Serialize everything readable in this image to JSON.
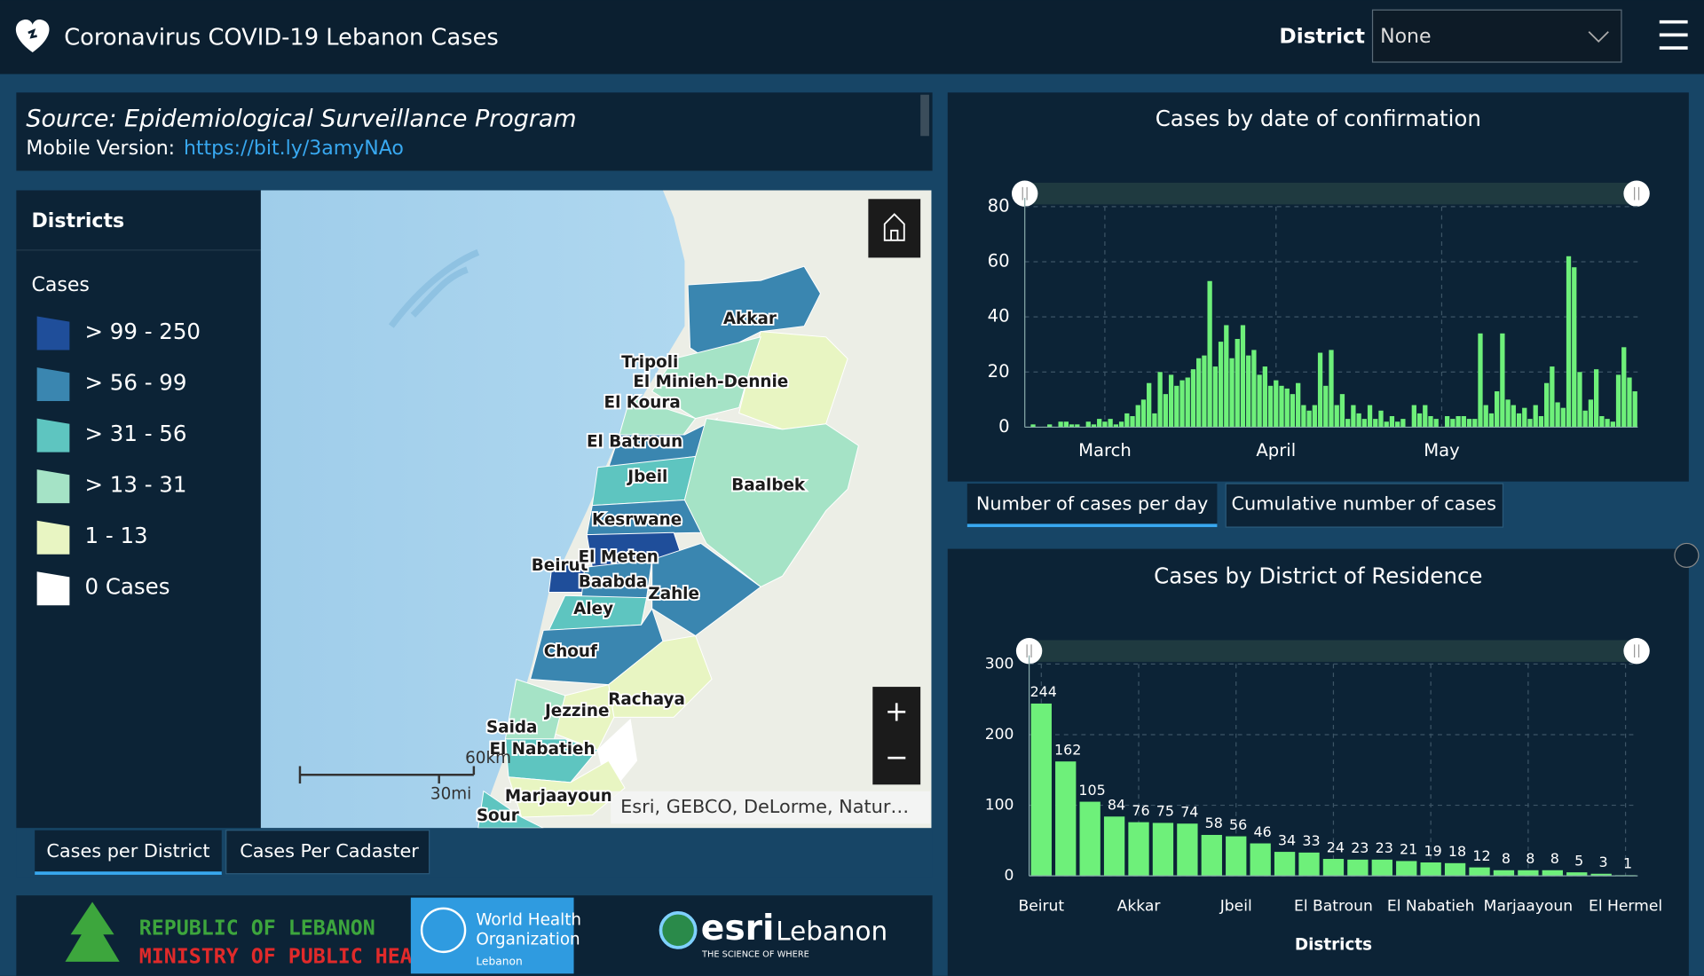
{
  "header": {
    "title": "Coronavirus COVID-19 Lebanon Cases",
    "filter_label": "District",
    "filter_value": "None"
  },
  "source": {
    "title": "Source: Epidemiological Surveillance Program",
    "mobile_label": "Mobile Version:",
    "mobile_link": "https://bit.ly/3amyNAo"
  },
  "legend": {
    "title": "Districts",
    "subtitle": "Cases",
    "items": [
      {
        "label": "> 99 - 250",
        "color": "#1f4e9a"
      },
      {
        "label": "> 56 - 99",
        "color": "#3a86b0"
      },
      {
        "label": "> 31 - 56",
        "color": "#5ec5c0"
      },
      {
        "label": "> 13 - 31",
        "color": "#a5e3c6"
      },
      {
        "label": "1 - 13",
        "color": "#e8f5c2"
      },
      {
        "label": "0 Cases",
        "color": "#ffffff"
      }
    ]
  },
  "map": {
    "labels": [
      "Akkar",
      "Tripoli",
      "El Minieh-Dennie",
      "El Koura",
      "El Batroun",
      "Jbeil",
      "Baalbek",
      "Kesrwane",
      "Beirut",
      "El Meten",
      "Baabda",
      "Zahle",
      "Aley",
      "Chouf",
      "Rachaya",
      "Jezzine",
      "Saida",
      "El Nabatieh",
      "Marjaayoun",
      "Sour"
    ],
    "scale_km": "60km",
    "scale_mi": "30mi",
    "attribution": "Esri, GEBCO, DeLorme, Natur…",
    "zoom_in": "+",
    "zoom_out": "−"
  },
  "map_tabs": [
    "Cases per District",
    "Cases Per Cadaster"
  ],
  "chart_tabs": [
    "Number of cases per day",
    "Cumulative number of cases"
  ],
  "logos": {
    "moph_line1": "REPUBLIC OF LEBANON",
    "moph_line2": "MINISTRY OF PUBLIC HEALTH",
    "who_line1": "World Health",
    "who_line2": "Organization",
    "who_line3": "Lebanon",
    "esri": "esri",
    "esri_country": "Lebanon",
    "esri_tagline": "THE SCIENCE OF WHERE"
  },
  "chart_data": [
    {
      "type": "bar",
      "title": "Cases by  date of confirmation",
      "color": "#6ef07a",
      "grid": true,
      "categories": [
        null,
        null,
        null,
        null,
        null,
        null,
        null,
        null,
        null,
        null,
        null,
        null,
        null,
        null,
        "March",
        null,
        null,
        null,
        null,
        null,
        null,
        null,
        null,
        null,
        null,
        null,
        null,
        null,
        null,
        null,
        null,
        null,
        null,
        null,
        null,
        null,
        null,
        null,
        null,
        null,
        null,
        null,
        null,
        null,
        null,
        "April",
        null,
        null,
        null,
        null,
        null,
        null,
        null,
        null,
        null,
        null,
        null,
        null,
        null,
        null,
        null,
        null,
        null,
        null,
        null,
        null,
        null,
        null,
        null,
        null,
        null,
        null,
        null,
        null,
        null,
        "May",
        null,
        null,
        null,
        null,
        null,
        null,
        null,
        null,
        null,
        null,
        null,
        null,
        null,
        null,
        null,
        null,
        null,
        null,
        null,
        null,
        null,
        null,
        null,
        null,
        null,
        null,
        null,
        null,
        null,
        null,
        null,
        null,
        null,
        null,
        null
      ],
      "values": [
        0,
        1,
        0,
        0,
        1,
        0,
        2,
        2,
        1,
        1,
        0,
        2,
        1,
        3,
        2,
        3,
        1,
        2,
        5,
        4,
        8,
        10,
        16,
        5,
        20,
        12,
        19,
        15,
        17,
        18,
        21,
        25,
        26,
        53,
        22,
        31,
        37,
        25,
        32,
        37,
        26,
        28,
        19,
        22,
        15,
        17,
        15,
        14,
        12,
        16,
        8,
        6,
        8,
        27,
        15,
        28,
        8,
        12,
        3,
        8,
        5,
        3,
        8,
        3,
        6,
        2,
        4,
        2,
        3,
        0,
        8,
        5,
        8,
        4,
        3,
        0,
        4,
        3,
        4,
        4,
        3,
        3,
        34,
        8,
        5,
        13,
        34,
        10,
        8,
        5,
        7,
        3,
        8,
        4,
        16,
        22,
        9,
        7,
        62,
        58,
        20,
        6,
        10,
        21,
        4,
        3,
        2,
        19,
        29,
        18,
        13
      ],
      "ylim": [
        0,
        80
      ],
      "yticks": [
        0,
        20,
        40,
        60,
        80
      ]
    },
    {
      "type": "bar",
      "title": "Cases by District of Residence",
      "x_label": "Districts",
      "color": "#6ef07a",
      "grid": true,
      "categories": [
        "Beirut",
        null,
        null,
        null,
        "Akkar",
        null,
        null,
        null,
        "Jbeil",
        null,
        null,
        null,
        "El Batroun",
        null,
        null,
        null,
        "El Nabatieh",
        null,
        null,
        null,
        "Marjaayoun",
        null,
        null,
        null,
        "El Hermel"
      ],
      "values": [
        244,
        162,
        105,
        84,
        76,
        75,
        74,
        58,
        56,
        46,
        34,
        33,
        24,
        23,
        23,
        21,
        19,
        18,
        12,
        8,
        8,
        8,
        5,
        3,
        1
      ],
      "ylim": [
        0,
        300
      ],
      "yticks": [
        0,
        100,
        200,
        300
      ]
    }
  ]
}
